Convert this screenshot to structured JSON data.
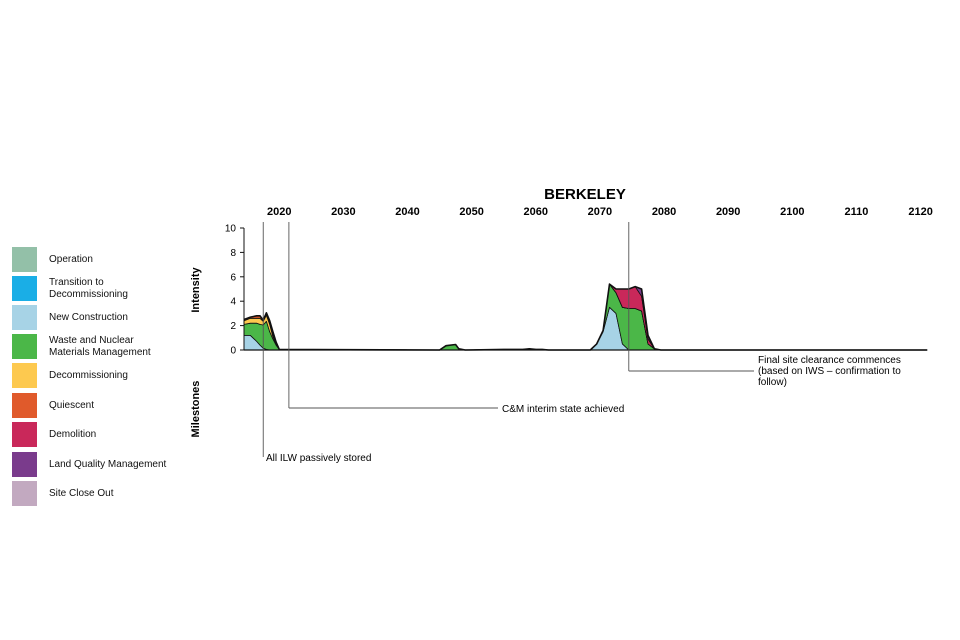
{
  "legend": {
    "items": [
      {
        "label": "Operation",
        "color": "#93c0a8"
      },
      {
        "label": "Transition to\nDecommissioning",
        "color": "#1aaee6"
      },
      {
        "label": "New Construction",
        "color": "#a7d3e6"
      },
      {
        "label": "Waste and Nuclear\nMaterials Management",
        "color": "#4bb748"
      },
      {
        "label": "Decommissioning",
        "color": "#fdc94f"
      },
      {
        "label": "Quiescent",
        "color": "#e05a2b"
      },
      {
        "label": "Demolition",
        "color": "#c9285a"
      },
      {
        "label": "Land Quality Management",
        "color": "#7a3b8c"
      },
      {
        "label": "Site Close Out",
        "color": "#c2a9c0"
      }
    ]
  },
  "chart_data": {
    "type": "area",
    "title": "BERKELEY",
    "ylabel": "Intensity",
    "milestones_label": "Milestones",
    "ylim": [
      0,
      10
    ],
    "y_ticks": [
      "10",
      "8",
      "6",
      "4",
      "2",
      "0"
    ],
    "x_ticks": [
      "2020",
      "2030",
      "2040",
      "2050",
      "2060",
      "2070",
      "2080",
      "2090",
      "2100",
      "2110",
      "2120"
    ],
    "xlim": [
      2014.5,
      2121
    ],
    "x": [
      2014.5,
      2015.5,
      2016.5,
      2017,
      2017.5,
      2018,
      2018.5,
      2019,
      2019.5,
      2020,
      2045,
      2046,
      2047.5,
      2048,
      2049,
      2055,
      2058,
      2059,
      2060,
      2061,
      2062,
      2068.5,
      2069.5,
      2070.5,
      2071.5,
      2072.5,
      2073.5,
      2074.5,
      2075.5,
      2076.5,
      2077.5,
      2078.5,
      2079.5,
      2121
    ],
    "series": [
      {
        "name": "New Construction",
        "color": "#a7d3e6",
        "values": [
          1.2,
          1.2,
          0.7,
          0.4,
          0.15,
          0.05,
          0,
          0,
          0,
          0,
          0,
          0,
          0,
          0,
          0,
          0,
          0,
          0,
          0,
          0,
          0,
          0,
          0.5,
          1.5,
          3.5,
          3.0,
          0.5,
          0,
          0,
          0,
          0,
          0,
          0,
          0
        ]
      },
      {
        "name": "Waste and Nuclear Materials Management",
        "color": "#4bb748",
        "values": [
          0.9,
          1.0,
          1.5,
          1.7,
          1.9,
          2.3,
          1.5,
          0.9,
          0.4,
          0.05,
          0,
          0.35,
          0.45,
          0.1,
          0,
          0.05,
          0.05,
          0.1,
          0.05,
          0.05,
          0,
          0,
          0,
          0.1,
          1.9,
          1.7,
          3.0,
          3.4,
          3.4,
          3.2,
          0.5,
          0.1,
          0,
          0
        ]
      },
      {
        "name": "Decommissioning",
        "color": "#fdc94f",
        "values": [
          0.3,
          0.4,
          0.4,
          0.5,
          0.3,
          0.5,
          0.6,
          0.2,
          0.05,
          0,
          0,
          0,
          0,
          0,
          0,
          0,
          0,
          0,
          0,
          0,
          0,
          0,
          0,
          0,
          0,
          0,
          0,
          0,
          0,
          0,
          0,
          0,
          0,
          0
        ]
      },
      {
        "name": "Quiescent",
        "color": "#e05a2b",
        "values": [
          0.1,
          0.1,
          0.2,
          0.2,
          0.1,
          0.2,
          0.2,
          0.2,
          0.1,
          0,
          0,
          0,
          0,
          0,
          0,
          0,
          0,
          0,
          0,
          0,
          0,
          0,
          0,
          0,
          0,
          0,
          0,
          0,
          0,
          0,
          0,
          0,
          0,
          0
        ]
      },
      {
        "name": "Demolition",
        "color": "#c9285a",
        "values": [
          0,
          0,
          0,
          0,
          0,
          0,
          0.1,
          0.2,
          0.1,
          0,
          0,
          0,
          0,
          0,
          0,
          0,
          0,
          0,
          0,
          0,
          0,
          0,
          0,
          0,
          0,
          0.3,
          1.5,
          1.6,
          1.8,
          1.2,
          0.4,
          0,
          0,
          0
        ]
      },
      {
        "name": "Land Quality Management",
        "color": "#7a3b8c",
        "values": [
          0,
          0,
          0,
          0,
          0,
          0,
          0,
          0,
          0,
          0,
          0,
          0,
          0,
          0,
          0,
          0,
          0,
          0,
          0,
          0,
          0,
          0,
          0,
          0,
          0,
          0,
          0,
          0,
          0,
          0.6,
          0.3,
          0,
          0,
          0
        ]
      }
    ],
    "milestones": [
      {
        "year": 2017.5,
        "label": "All ILW passively stored"
      },
      {
        "year": 2021.5,
        "label": "C&M interim state achieved"
      },
      {
        "year": 2074.5,
        "label": "Final site clearance commences\n(based on IWS – confirmation to\nfollow)"
      }
    ]
  }
}
